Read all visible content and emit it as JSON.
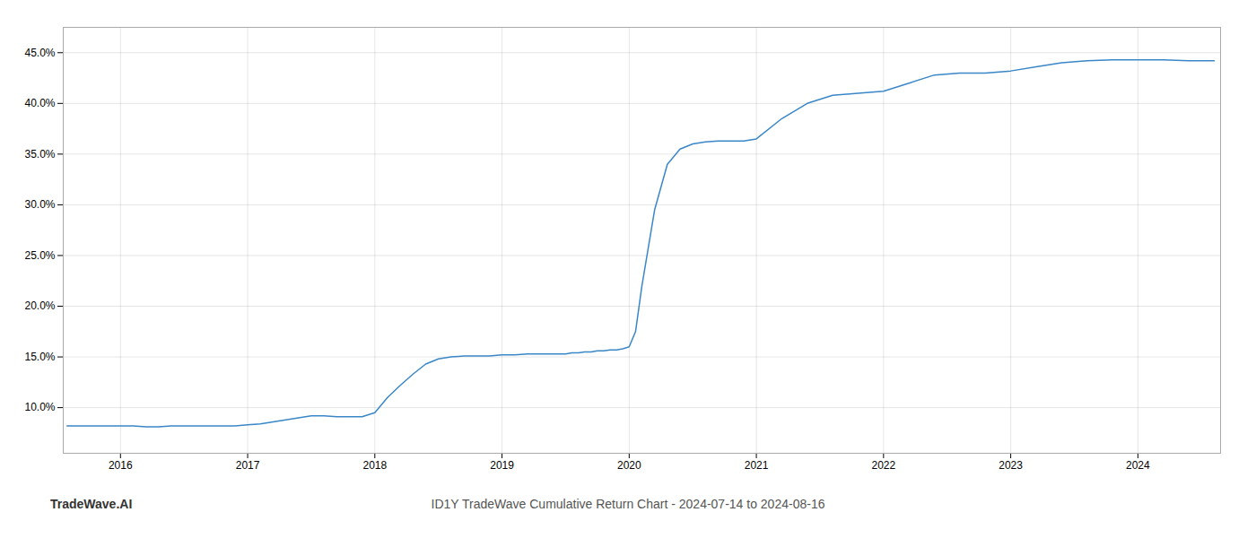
{
  "chart_data": {
    "type": "line",
    "title": "ID1Y TradeWave Cumulative Return Chart - 2024-07-14 to 2024-08-16",
    "annotations": [
      "TradeWave.AI"
    ],
    "color": "#3a87c8",
    "grid": true,
    "xlim": [
      2015.55,
      2024.65
    ],
    "xticks": [
      2016,
      2017,
      2018,
      2019,
      2020,
      2021,
      2022,
      2023,
      2024
    ],
    "ylim": [
      0.055,
      0.475
    ],
    "yticks": [
      {
        "value": 0.1,
        "label": "10.0%"
      },
      {
        "value": 0.15,
        "label": "15.0%"
      },
      {
        "value": 0.2,
        "label": "20.0%"
      },
      {
        "value": 0.25,
        "label": "25.0%"
      },
      {
        "value": 0.3,
        "label": "30.0%"
      },
      {
        "value": 0.35,
        "label": "35.0%"
      },
      {
        "value": 0.4,
        "label": "40.0%"
      },
      {
        "value": 0.45,
        "label": "45.0%"
      }
    ],
    "x": [
      2015.58,
      2016.0,
      2016.1,
      2016.2,
      2016.3,
      2016.4,
      2016.5,
      2016.6,
      2016.7,
      2016.8,
      2016.9,
      2017.0,
      2017.1,
      2017.2,
      2017.3,
      2017.4,
      2017.5,
      2017.6,
      2017.7,
      2017.8,
      2017.9,
      2018.0,
      2018.1,
      2018.2,
      2018.3,
      2018.4,
      2018.5,
      2018.6,
      2018.7,
      2018.8,
      2018.9,
      2019.0,
      2019.1,
      2019.2,
      2019.3,
      2019.4,
      2019.5,
      2019.55,
      2019.6,
      2019.65,
      2019.7,
      2019.75,
      2019.8,
      2019.85,
      2019.9,
      2019.95,
      2020.0,
      2020.05,
      2020.1,
      2020.2,
      2020.3,
      2020.4,
      2020.5,
      2020.6,
      2020.7,
      2020.8,
      2020.9,
      2021.0,
      2021.2,
      2021.4,
      2021.6,
      2021.8,
      2022.0,
      2022.2,
      2022.4,
      2022.6,
      2022.8,
      2023.0,
      2023.2,
      2023.4,
      2023.6,
      2023.8,
      2024.0,
      2024.2,
      2024.4,
      2024.6
    ],
    "values": [
      0.082,
      0.082,
      0.082,
      0.081,
      0.081,
      0.082,
      0.082,
      0.082,
      0.082,
      0.082,
      0.082,
      0.083,
      0.084,
      0.086,
      0.088,
      0.09,
      0.092,
      0.092,
      0.091,
      0.091,
      0.091,
      0.095,
      0.11,
      0.122,
      0.133,
      0.143,
      0.148,
      0.15,
      0.151,
      0.151,
      0.151,
      0.152,
      0.152,
      0.153,
      0.153,
      0.153,
      0.153,
      0.154,
      0.154,
      0.155,
      0.155,
      0.156,
      0.156,
      0.157,
      0.157,
      0.158,
      0.16,
      0.175,
      0.22,
      0.295,
      0.34,
      0.355,
      0.36,
      0.362,
      0.363,
      0.363,
      0.363,
      0.365,
      0.385,
      0.4,
      0.408,
      0.41,
      0.412,
      0.42,
      0.428,
      0.43,
      0.43,
      0.432,
      0.436,
      0.44,
      0.442,
      0.443,
      0.443,
      0.443,
      0.442,
      0.442
    ]
  }
}
